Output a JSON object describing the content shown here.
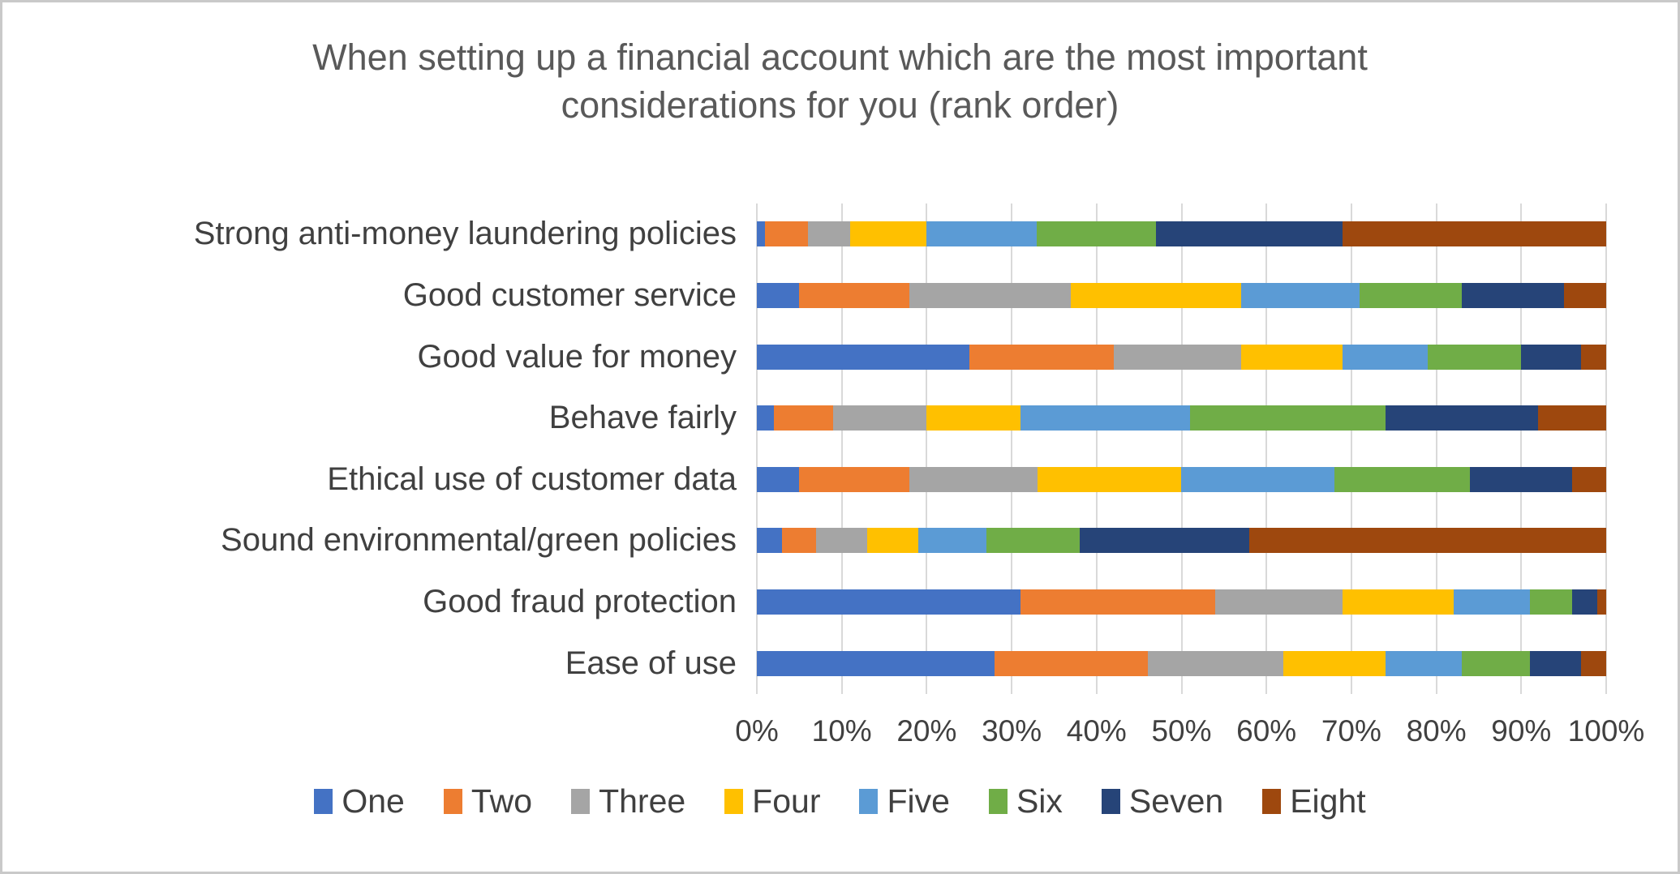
{
  "chart_data": {
    "type": "bar",
    "orientation": "horizontal",
    "stacked": true,
    "stacked_total_percent": 100,
    "title": "When setting up a financial account which are the most important considerations for you (rank order)",
    "categories": [
      "Strong anti-money laundering policies",
      "Good customer service",
      "Good value for money",
      "Behave fairly",
      "Ethical use of customer data",
      "Sound environmental/green policies",
      "Good fraud protection",
      "Ease of use"
    ],
    "series": [
      {
        "name": "One",
        "color": "#4472C4",
        "values": [
          1,
          5,
          25,
          2,
          5,
          3,
          31,
          28
        ]
      },
      {
        "name": "Two",
        "color": "#ED7D31",
        "values": [
          5,
          13,
          17,
          7,
          13,
          4,
          23,
          18
        ]
      },
      {
        "name": "Three",
        "color": "#A5A5A5",
        "values": [
          5,
          19,
          15,
          11,
          15,
          6,
          15,
          16
        ]
      },
      {
        "name": "Four",
        "color": "#FFC000",
        "values": [
          9,
          20,
          12,
          11,
          17,
          6,
          13,
          12
        ]
      },
      {
        "name": "Five",
        "color": "#5B9BD5",
        "values": [
          13,
          14,
          10,
          20,
          18,
          8,
          9,
          9
        ]
      },
      {
        "name": "Six",
        "color": "#70AD47",
        "values": [
          14,
          12,
          11,
          23,
          16,
          11,
          5,
          8
        ]
      },
      {
        "name": "Seven",
        "color": "#264478",
        "values": [
          22,
          12,
          7,
          18,
          12,
          20,
          3,
          6
        ]
      },
      {
        "name": "Eight",
        "color": "#9E480E",
        "values": [
          31,
          5,
          3,
          8,
          4,
          42,
          1,
          3
        ]
      }
    ],
    "xlabel": "",
    "ylabel": "",
    "xlim": [
      0,
      100
    ],
    "x_tick_labels": [
      "0%",
      "10%",
      "20%",
      "30%",
      "40%",
      "50%",
      "60%",
      "70%",
      "80%",
      "90%",
      "100%"
    ],
    "grid": "vertical",
    "legend_position": "bottom",
    "legend_labels": [
      "One",
      "Two",
      "Three",
      "Four",
      "Five",
      "Six",
      "Seven",
      "Eight"
    ]
  },
  "style_colors": {
    "gridline": "#d9d9d9",
    "title_text": "#595959",
    "label_text": "#404040",
    "frame_border": "#c9c9c9",
    "background": "#ffffff"
  }
}
